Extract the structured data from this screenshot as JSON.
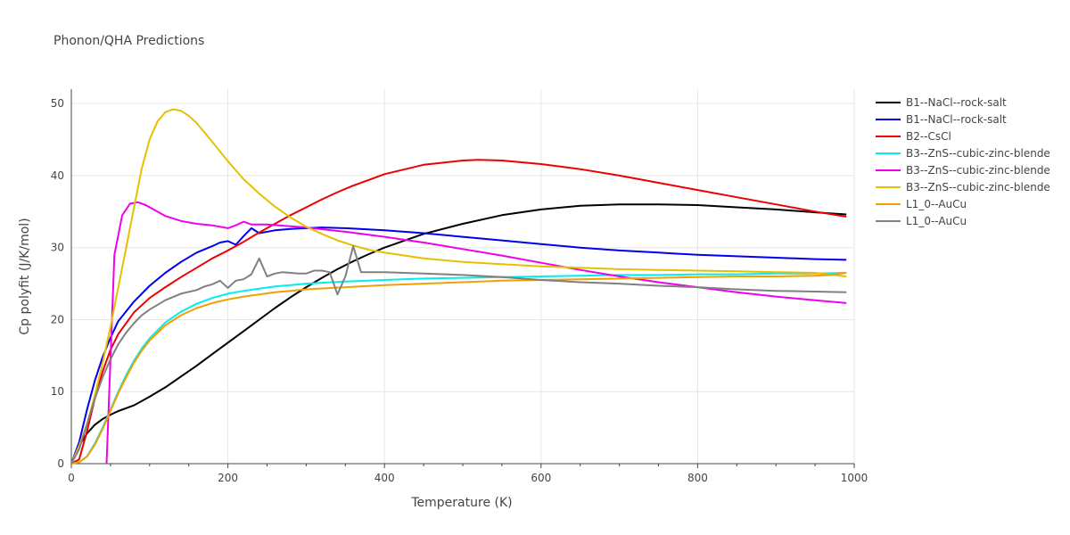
{
  "chart_data": {
    "type": "line",
    "title": "Phonon/QHA Predictions",
    "xlabel": "Temperature (K)",
    "ylabel": "Cp polyfit (J/K/mol)",
    "xlim": [
      0,
      1000
    ],
    "ylim": [
      0,
      52
    ],
    "xticks": [
      0,
      200,
      400,
      600,
      800,
      1000
    ],
    "yticks": [
      0,
      10,
      20,
      30,
      40,
      50
    ],
    "grid": true,
    "legend_position": "right",
    "series": [
      {
        "name": "B1--NaCl--rock-salt",
        "color": "#000000",
        "x": [
          0,
          10,
          20,
          30,
          40,
          50,
          60,
          80,
          100,
          120,
          140,
          160,
          180,
          200,
          220,
          240,
          260,
          280,
          300,
          320,
          340,
          360,
          380,
          400,
          450,
          500,
          550,
          600,
          650,
          700,
          750,
          800,
          850,
          900,
          950,
          990
        ],
        "y": [
          0,
          2.5,
          4.2,
          5.4,
          6.2,
          6.8,
          7.3,
          8.1,
          9.3,
          10.6,
          12.1,
          13.6,
          15.2,
          16.8,
          18.4,
          20.0,
          21.6,
          23.1,
          24.5,
          25.8,
          27.0,
          28.1,
          29.1,
          30.0,
          31.9,
          33.3,
          34.5,
          35.3,
          35.8,
          36.0,
          36.0,
          35.9,
          35.6,
          35.3,
          34.9,
          34.6
        ]
      },
      {
        "name": "B1--NaCl--rock-salt",
        "color": "#0000ee",
        "x": [
          0,
          10,
          20,
          30,
          40,
          50,
          60,
          80,
          100,
          120,
          140,
          160,
          180,
          190,
          200,
          210,
          220,
          230,
          240,
          260,
          280,
          300,
          320,
          350,
          400,
          450,
          500,
          550,
          600,
          650,
          700,
          750,
          800,
          850,
          900,
          950,
          990
        ],
        "y": [
          0,
          3.0,
          7.5,
          11.5,
          14.8,
          17.5,
          19.8,
          22.5,
          24.7,
          26.5,
          28.0,
          29.3,
          30.2,
          30.7,
          30.9,
          30.4,
          31.6,
          32.7,
          32.0,
          32.4,
          32.6,
          32.7,
          32.8,
          32.7,
          32.4,
          32.0,
          31.5,
          31.0,
          30.5,
          30.0,
          29.6,
          29.3,
          29.0,
          28.8,
          28.6,
          28.4,
          28.3
        ]
      },
      {
        "name": "B2--CsCl",
        "color": "#ee0000",
        "x": [
          0,
          10,
          20,
          30,
          40,
          50,
          60,
          80,
          100,
          120,
          140,
          160,
          180,
          200,
          220,
          240,
          260,
          280,
          300,
          320,
          340,
          360,
          380,
          400,
          450,
          500,
          520,
          550,
          600,
          650,
          700,
          750,
          800,
          850,
          900,
          950,
          990
        ],
        "y": [
          0,
          0.6,
          4.5,
          9.0,
          12.8,
          15.8,
          18.0,
          21.0,
          23.0,
          24.5,
          25.9,
          27.2,
          28.5,
          29.6,
          30.8,
          32.1,
          33.3,
          34.5,
          35.6,
          36.7,
          37.7,
          38.6,
          39.4,
          40.2,
          41.5,
          42.1,
          42.2,
          42.1,
          41.6,
          40.9,
          40.0,
          39.0,
          38.0,
          37.0,
          36.0,
          35.0,
          34.3
        ]
      },
      {
        "name": "B3--ZnS--cubic-zinc-blende",
        "color": "#00eeee",
        "x": [
          0,
          10,
          20,
          30,
          40,
          50,
          60,
          70,
          80,
          90,
          100,
          120,
          140,
          160,
          180,
          200,
          220,
          240,
          260,
          280,
          300,
          350,
          400,
          450,
          500,
          550,
          600,
          650,
          700,
          750,
          800,
          850,
          900,
          950,
          990
        ],
        "y": [
          0,
          0.2,
          1.0,
          2.8,
          5.0,
          7.5,
          10.0,
          12.3,
          14.3,
          16.0,
          17.4,
          19.6,
          21.1,
          22.2,
          23.0,
          23.6,
          24.0,
          24.3,
          24.6,
          24.8,
          25.0,
          25.3,
          25.5,
          25.7,
          25.8,
          25.9,
          26.0,
          26.1,
          26.2,
          26.2,
          26.3,
          26.3,
          26.4,
          26.4,
          26.5
        ]
      },
      {
        "name": "B3--ZnS--cubic-zinc-blende",
        "color": "#ee00ee",
        "x": [
          45,
          55,
          65,
          75,
          85,
          95,
          105,
          120,
          140,
          160,
          180,
          190,
          200,
          210,
          220,
          230,
          250,
          300,
          350,
          400,
          450,
          500,
          550,
          600,
          650,
          700,
          750,
          800,
          850,
          900,
          950,
          990
        ],
        "y": [
          0,
          29.0,
          34.5,
          36.1,
          36.3,
          35.9,
          35.3,
          34.4,
          33.7,
          33.3,
          33.1,
          32.9,
          32.7,
          33.1,
          33.6,
          33.2,
          33.2,
          32.8,
          32.2,
          31.5,
          30.7,
          29.8,
          28.9,
          27.9,
          26.9,
          26.0,
          25.2,
          24.5,
          23.8,
          23.2,
          22.7,
          22.3
        ]
      },
      {
        "name": "B3--ZnS--cubic-zinc-blende",
        "color": "#e6c000",
        "x": [
          0,
          10,
          20,
          30,
          40,
          50,
          60,
          70,
          80,
          90,
          100,
          110,
          120,
          130,
          140,
          150,
          160,
          170,
          180,
          200,
          220,
          240,
          260,
          280,
          300,
          320,
          340,
          360,
          380,
          400,
          450,
          500,
          550,
          600,
          650,
          700,
          750,
          800,
          850,
          900,
          950,
          990
        ],
        "y": [
          0,
          2.5,
          5.5,
          9.5,
          14.0,
          19.0,
          24.5,
          30.0,
          35.5,
          41.0,
          45.0,
          47.5,
          48.8,
          49.2,
          49.0,
          48.3,
          47.3,
          46.0,
          44.7,
          42.0,
          39.5,
          37.5,
          35.7,
          34.2,
          32.9,
          31.9,
          31.0,
          30.3,
          29.7,
          29.3,
          28.5,
          28.0,
          27.7,
          27.4,
          27.2,
          27.0,
          26.9,
          26.8,
          26.7,
          26.6,
          26.5,
          26.0
        ]
      },
      {
        "name": "L1_0--AuCu",
        "color": "#f0a000",
        "x": [
          0,
          10,
          20,
          30,
          40,
          50,
          60,
          70,
          80,
          90,
          100,
          120,
          140,
          160,
          180,
          200,
          220,
          240,
          260,
          280,
          300,
          350,
          400,
          450,
          500,
          550,
          600,
          650,
          700,
          750,
          800,
          850,
          900,
          950,
          970,
          990
        ],
        "y": [
          0,
          0.2,
          1.0,
          2.6,
          4.8,
          7.3,
          9.8,
          12.0,
          14.0,
          15.7,
          17.1,
          19.2,
          20.6,
          21.6,
          22.3,
          22.8,
          23.2,
          23.5,
          23.8,
          24.0,
          24.2,
          24.5,
          24.8,
          25.0,
          25.2,
          25.4,
          25.5,
          25.6,
          25.7,
          25.8,
          25.9,
          26.0,
          26.0,
          26.1,
          26.2,
          26.5
        ]
      },
      {
        "name": "L1_0--AuCu",
        "color": "#808080",
        "x": [
          0,
          10,
          20,
          30,
          40,
          50,
          60,
          70,
          80,
          90,
          100,
          120,
          140,
          160,
          170,
          180,
          190,
          200,
          210,
          220,
          230,
          240,
          250,
          260,
          270,
          280,
          290,
          300,
          310,
          320,
          330,
          340,
          350,
          360,
          370,
          380,
          400,
          450,
          500,
          550,
          600,
          650,
          700,
          750,
          800,
          850,
          900,
          950,
          990
        ],
        "y": [
          0,
          2.0,
          5.5,
          9.0,
          12.0,
          14.5,
          16.6,
          18.2,
          19.5,
          20.6,
          21.4,
          22.7,
          23.6,
          24.1,
          24.6,
          24.9,
          25.4,
          24.4,
          25.4,
          25.6,
          26.3,
          28.5,
          26.0,
          26.4,
          26.6,
          26.5,
          26.4,
          26.4,
          26.8,
          26.8,
          26.6,
          23.5,
          26.0,
          30.2,
          26.6,
          26.6,
          26.6,
          26.4,
          26.2,
          25.9,
          25.5,
          25.2,
          25.0,
          24.7,
          24.5,
          24.2,
          24.0,
          23.9,
          23.8
        ]
      }
    ]
  }
}
